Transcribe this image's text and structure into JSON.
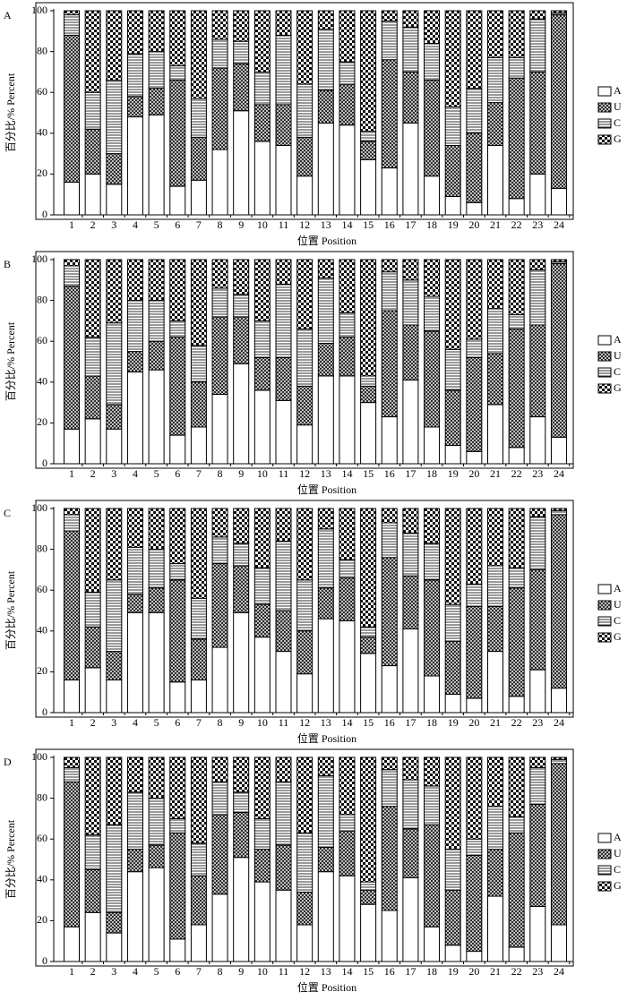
{
  "chart_data": [
    {
      "type": "stacked_bar",
      "panel_label": "A",
      "xlabel": "位置 Position",
      "ylabel": "百分比/% Percent",
      "categories": [
        "1",
        "2",
        "3",
        "4",
        "5",
        "6",
        "7",
        "8",
        "9",
        "10",
        "11",
        "12",
        "13",
        "14",
        "15",
        "16",
        "17",
        "18",
        "19",
        "20",
        "21",
        "22",
        "23",
        "24"
      ],
      "ylim": [
        0,
        100
      ],
      "yticks": [
        0,
        20,
        40,
        60,
        80,
        100
      ],
      "legend": "right",
      "series": [
        {
          "name": "A",
          "pattern": "none",
          "values": [
            16,
            20,
            15,
            48,
            49,
            14,
            17,
            32,
            51,
            36,
            34,
            19,
            45,
            44,
            27,
            23,
            45,
            19,
            9,
            6,
            34,
            8,
            20,
            13
          ]
        },
        {
          "name": "U",
          "pattern": "crosshatch",
          "values": [
            72,
            22,
            15,
            10,
            13,
            52,
            21,
            40,
            23,
            18,
            20,
            19,
            16,
            20,
            9,
            53,
            25,
            47,
            25,
            34,
            21,
            59,
            50,
            85
          ]
        },
        {
          "name": "C",
          "pattern": "lines",
          "values": [
            10,
            18,
            36,
            21,
            18,
            7,
            19,
            14,
            11,
            16,
            34,
            26,
            30,
            11,
            5,
            19,
            22,
            18,
            19,
            22,
            22,
            10,
            26,
            1
          ]
        },
        {
          "name": "G",
          "pattern": "checker",
          "values": [
            2,
            40,
            34,
            21,
            20,
            27,
            43,
            14,
            15,
            30,
            12,
            36,
            9,
            25,
            59,
            5,
            8,
            16,
            47,
            38,
            23,
            23,
            4,
            1
          ]
        }
      ]
    },
    {
      "type": "stacked_bar",
      "panel_label": "B",
      "xlabel": "位置 Position",
      "ylabel": "百分比/% Percent",
      "categories": [
        "1",
        "2",
        "3",
        "4",
        "5",
        "6",
        "7",
        "8",
        "9",
        "10",
        "11",
        "12",
        "13",
        "14",
        "15",
        "16",
        "17",
        "18",
        "19",
        "20",
        "21",
        "22",
        "23",
        "24"
      ],
      "ylim": [
        0,
        100
      ],
      "yticks": [
        0,
        20,
        40,
        60,
        80,
        100
      ],
      "legend": "right",
      "series": [
        {
          "name": "A",
          "pattern": "none",
          "values": [
            17,
            22,
            17,
            45,
            46,
            14,
            18,
            34,
            49,
            36,
            31,
            19,
            43,
            43,
            30,
            23,
            41,
            18,
            9,
            6,
            29,
            8,
            23,
            13
          ]
        },
        {
          "name": "U",
          "pattern": "crosshatch",
          "values": [
            70,
            21,
            12,
            10,
            14,
            48,
            22,
            38,
            23,
            16,
            21,
            19,
            16,
            19,
            8,
            52,
            27,
            47,
            27,
            46,
            25,
            58,
            45,
            85
          ]
        },
        {
          "name": "C",
          "pattern": "lines",
          "values": [
            10,
            19,
            40,
            25,
            20,
            8,
            18,
            14,
            11,
            18,
            36,
            28,
            32,
            12,
            5,
            19,
            22,
            17,
            20,
            9,
            22,
            7,
            27,
            1
          ]
        },
        {
          "name": "G",
          "pattern": "checker",
          "values": [
            3,
            38,
            31,
            20,
            20,
            30,
            42,
            14,
            17,
            30,
            12,
            34,
            9,
            26,
            57,
            6,
            10,
            18,
            44,
            39,
            24,
            27,
            5,
            1
          ]
        }
      ]
    },
    {
      "type": "stacked_bar",
      "panel_label": "C",
      "xlabel": "位置 Position",
      "ylabel": "百分比/% Percent",
      "categories": [
        "1",
        "2",
        "3",
        "4",
        "5",
        "6",
        "7",
        "8",
        "9",
        "10",
        "11",
        "12",
        "13",
        "14",
        "15",
        "16",
        "17",
        "18",
        "19",
        "20",
        "21",
        "22",
        "23",
        "24"
      ],
      "ylim": [
        0,
        100
      ],
      "yticks": [
        0,
        20,
        40,
        60,
        80,
        100
      ],
      "legend": "right",
      "series": [
        {
          "name": "A",
          "pattern": "none",
          "values": [
            16,
            22,
            16,
            49,
            49,
            15,
            16,
            32,
            49,
            37,
            30,
            19,
            46,
            45,
            29,
            23,
            41,
            18,
            9,
            7,
            30,
            8,
            21,
            12
          ]
        },
        {
          "name": "U",
          "pattern": "crosshatch",
          "values": [
            73,
            20,
            14,
            9,
            12,
            50,
            20,
            41,
            23,
            16,
            20,
            21,
            15,
            21,
            8,
            53,
            26,
            47,
            26,
            45,
            22,
            53,
            49,
            85
          ]
        },
        {
          "name": "C",
          "pattern": "lines",
          "values": [
            8,
            17,
            35,
            23,
            19,
            8,
            20,
            13,
            11,
            18,
            34,
            25,
            29,
            9,
            5,
            17,
            21,
            18,
            18,
            11,
            20,
            10,
            26,
            2
          ]
        },
        {
          "name": "G",
          "pattern": "checker",
          "values": [
            3,
            41,
            35,
            19,
            20,
            27,
            44,
            14,
            17,
            29,
            16,
            35,
            10,
            25,
            58,
            7,
            12,
            17,
            47,
            37,
            28,
            29,
            4,
            1
          ]
        }
      ]
    },
    {
      "type": "stacked_bar",
      "panel_label": "D",
      "xlabel": "位置 Position",
      "ylabel": "百分比/% Percent",
      "categories": [
        "1",
        "2",
        "3",
        "4",
        "5",
        "6",
        "7",
        "8",
        "9",
        "10",
        "11",
        "12",
        "13",
        "14",
        "15",
        "16",
        "17",
        "18",
        "19",
        "20",
        "21",
        "22",
        "23",
        "24"
      ],
      "ylim": [
        0,
        100
      ],
      "yticks": [
        0,
        20,
        40,
        60,
        80,
        100
      ],
      "legend": "right",
      "series": [
        {
          "name": "A",
          "pattern": "none",
          "values": [
            17,
            24,
            14,
            44,
            46,
            11,
            18,
            33,
            51,
            39,
            35,
            18,
            44,
            42,
            28,
            25,
            41,
            17,
            8,
            5,
            32,
            7,
            27,
            18
          ]
        },
        {
          "name": "U",
          "pattern": "crosshatch",
          "values": [
            71,
            21,
            10,
            11,
            11,
            52,
            24,
            39,
            22,
            16,
            22,
            16,
            12,
            22,
            7,
            51,
            24,
            50,
            27,
            47,
            23,
            56,
            50,
            79
          ]
        },
        {
          "name": "C",
          "pattern": "lines",
          "values": [
            7,
            17,
            43,
            28,
            23,
            7,
            16,
            16,
            10,
            15,
            31,
            29,
            35,
            8,
            4,
            18,
            24,
            19,
            20,
            8,
            21,
            8,
            18,
            2
          ]
        },
        {
          "name": "G",
          "pattern": "checker",
          "values": [
            5,
            38,
            33,
            17,
            20,
            30,
            42,
            12,
            17,
            30,
            12,
            37,
            9,
            28,
            61,
            6,
            11,
            14,
            45,
            40,
            24,
            29,
            5,
            1
          ]
        }
      ]
    }
  ]
}
